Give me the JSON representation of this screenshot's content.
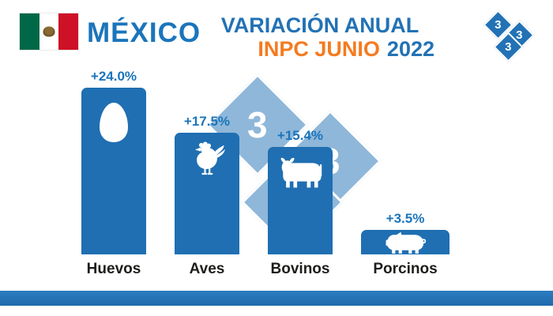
{
  "header": {
    "country": "MÉXICO",
    "title_line1": "VARIACIÓN ANUAL",
    "title_inpc": "INPC JUNIO",
    "title_year": "2022",
    "logo_digits": [
      "3",
      "3",
      "3"
    ]
  },
  "chart_data": {
    "type": "bar",
    "title": "VARIACIÓN ANUAL INPC JUNIO 2022",
    "categories": [
      "Huevos",
      "Aves",
      "Bovinos",
      "Porcinos"
    ],
    "values": [
      24.0,
      17.5,
      15.4,
      3.5
    ],
    "value_labels": [
      "+24.0%",
      "+17.5%",
      "+15.4%",
      "+3.5%"
    ],
    "icons": [
      "egg",
      "chicken",
      "cow",
      "pig"
    ],
    "ylim": [
      0,
      26
    ],
    "grid": false,
    "legend": "none",
    "bar_color": "#1f6fb2",
    "value_label_color": "#1b75bb",
    "category_label_color": "#1d1d1b"
  },
  "colors": {
    "primary_blue": "#1b75bb",
    "orange": "#f47b20",
    "flag_green": "#006847",
    "flag_red": "#ce1126",
    "watermark_blue": "#2272b5"
  }
}
